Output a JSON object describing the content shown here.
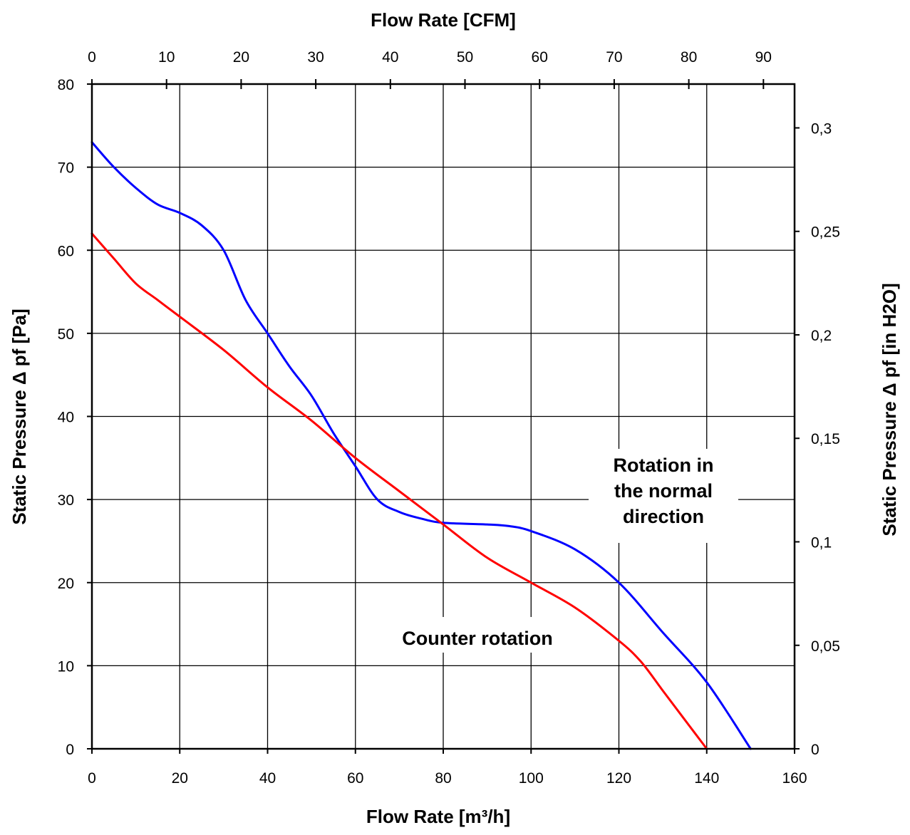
{
  "chart_data": {
    "type": "line",
    "title": "",
    "x_axis_bottom": {
      "label": "Flow Rate [m³/h]",
      "range": [
        0,
        160
      ],
      "ticks": [
        0,
        20,
        40,
        60,
        80,
        100,
        120,
        140,
        160
      ],
      "tick_labels": [
        "0",
        "20",
        "40",
        "60",
        "80",
        "100",
        "120",
        "140",
        "160"
      ]
    },
    "x_axis_top": {
      "label": "Flow Rate [CFM]",
      "ticks": [
        0,
        10,
        20,
        30,
        40,
        50,
        60,
        70,
        80,
        90
      ],
      "tick_labels": [
        "0",
        "10",
        "20",
        "30",
        "40",
        "50",
        "60",
        "70",
        "80",
        "90"
      ]
    },
    "y_axis_left": {
      "label": "Static Pressure Δ pf [Pa]",
      "range": [
        0,
        80
      ],
      "ticks": [
        0,
        10,
        20,
        30,
        40,
        50,
        60,
        70,
        80
      ],
      "tick_labels": [
        "0",
        "10",
        "20",
        "30",
        "40",
        "50",
        "60",
        "70",
        "80"
      ]
    },
    "y_axis_right": {
      "label": "Static Pressure Δ pf [in H2O]",
      "ticks": [
        0,
        0.05,
        0.1,
        0.15,
        0.2,
        0.25,
        0.3
      ],
      "tick_labels": [
        "0",
        "0,05",
        "0,1",
        "0,15",
        "0,2",
        "0,25",
        "0,3"
      ]
    },
    "grid": true,
    "legend": "none",
    "series": [
      {
        "color": "#0000ff",
        "x": [
          0,
          5,
          10,
          15,
          20,
          25,
          30,
          35,
          40,
          45,
          50,
          55,
          60,
          65,
          70,
          75,
          80,
          90,
          95,
          100,
          110,
          120,
          130,
          140,
          150
        ],
        "y": [
          73,
          70,
          67.5,
          65.5,
          64.5,
          63,
          60,
          54,
          50,
          46,
          42.5,
          38,
          34,
          30,
          28.5,
          27.7,
          27.2,
          27,
          26.8,
          26.2,
          24,
          20,
          14,
          8,
          0
        ]
      },
      {
        "color": "#ff0000",
        "x": [
          0,
          5,
          10,
          15,
          20,
          30,
          40,
          50,
          60,
          70,
          80,
          90,
          100,
          110,
          120,
          125,
          130,
          135,
          140
        ],
        "y": [
          62,
          59,
          56,
          54,
          52,
          48,
          43.5,
          39.5,
          35,
          31,
          27,
          23,
          20,
          17,
          13,
          10.5,
          7,
          3.5,
          0
        ]
      }
    ],
    "annotations": [
      {
        "lines": [
          "Rotation in",
          "the normal",
          "direction"
        ],
        "points_to": "blue series"
      },
      {
        "lines": [
          "Counter rotation"
        ],
        "points_to": "red series"
      }
    ]
  }
}
